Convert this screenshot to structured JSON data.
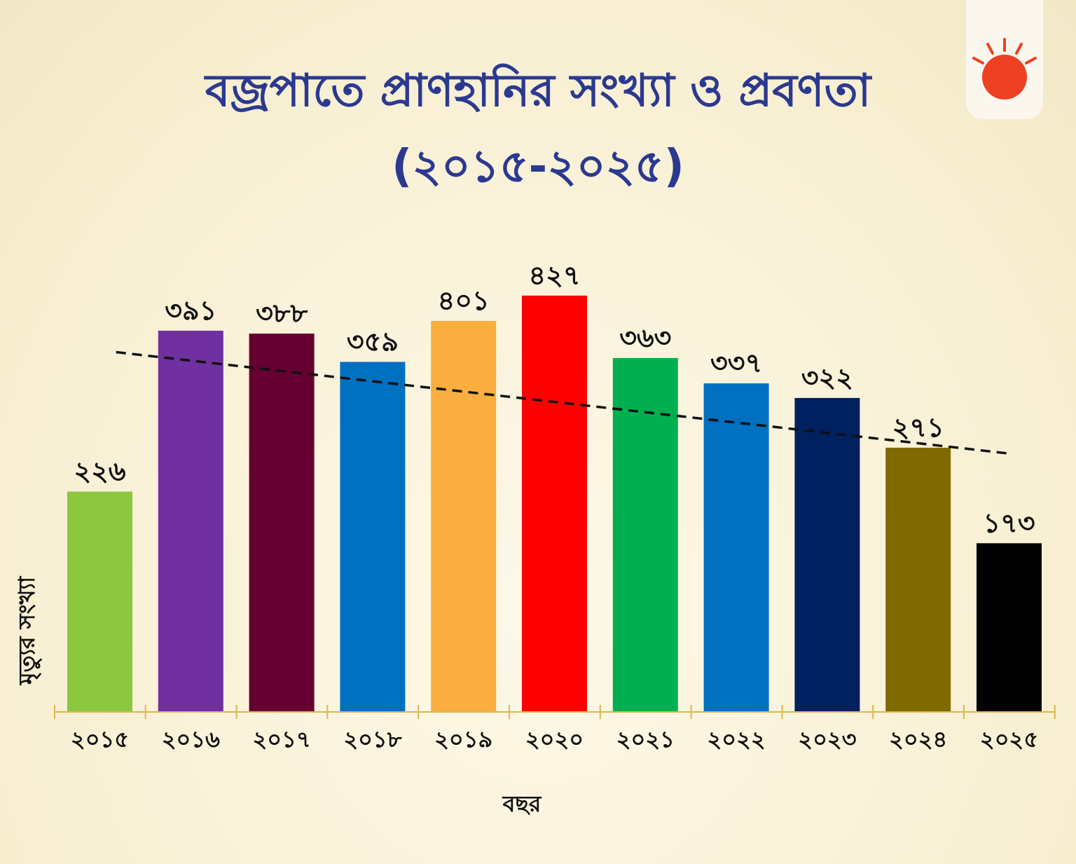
{
  "header": {
    "title_line1": "বজ্রপাতে প্রাণহানির সংখ্যা ও প্রবণতা",
    "title_line2": "(২০১৫-২০২৫)",
    "title_color": "#2b3990"
  },
  "logo": {
    "icon": "sun-icon",
    "color": "#ee4023"
  },
  "chart_data": {
    "type": "bar",
    "title": "বজ্রপাতে প্রাণহানির সংখ্যা ও প্রবণতা (২০১৫-২০২৫)",
    "xlabel": "বছর",
    "ylabel": "মৃত্যুর সংখ্যা",
    "categories": [
      "২০১৫",
      "২০১৬",
      "২০১৭",
      "২০১৮",
      "২০১৯",
      "২০২০",
      "২০২১",
      "২০২২",
      "২০২৩",
      "২০২৪",
      "২০২৫"
    ],
    "values": [
      226,
      391,
      388,
      359,
      401,
      427,
      363,
      337,
      322,
      271,
      173
    ],
    "value_labels": [
      "২২৬",
      "৩৯১",
      "৩৮৮",
      "৩৫৯",
      "৪০১",
      "৪২৭",
      "৩৬৩",
      "৩৩৭",
      "৩২২",
      "২৭১",
      "১৭৩"
    ],
    "colors": [
      "#8dc63f",
      "#7030a0",
      "#660033",
      "#0070c0",
      "#f9ae3f",
      "#ff0000",
      "#00b050",
      "#0070c0",
      "#002060",
      "#7f6a00",
      "#000000"
    ],
    "trendline": {
      "style": "dashed",
      "start": 369,
      "end": 265
    },
    "ylim": [
      0,
      500
    ],
    "grid": false,
    "legend": "none"
  }
}
